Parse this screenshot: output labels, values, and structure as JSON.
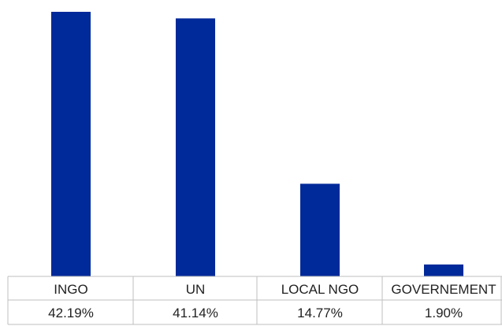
{
  "chart_data": {
    "type": "bar",
    "categories": [
      "INGO",
      "UN",
      "LOCAL NGO",
      "GOVERNEMENT"
    ],
    "values": [
      42.19,
      41.14,
      14.77,
      1.9
    ],
    "value_labels": [
      "42.19%",
      "41.14%",
      "14.77%",
      "1.90%"
    ],
    "ylim": [
      0,
      42.19
    ],
    "grid": false,
    "legend": "none",
    "bar_color": "#00299a",
    "table_line_color": "#bfbfbf",
    "text_color": "#222222"
  }
}
